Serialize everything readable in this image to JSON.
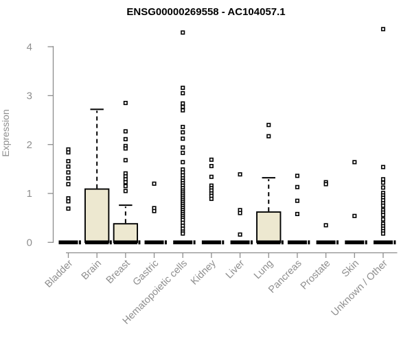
{
  "chart_data": {
    "type": "boxplot",
    "title": "ENSG00000269558 - AC104057.1",
    "ylabel": "Expression",
    "xlabel": "",
    "yticks": [
      0,
      1,
      2,
      3,
      4
    ],
    "ylim": [
      0,
      4.45
    ],
    "legend": "none",
    "grid": false,
    "colors": {
      "box_fill": "#EDE8D0",
      "box_stroke": "#000000",
      "marker": "#000000",
      "axis": "#8c8c8c",
      "tick_text": "#8e8e8e"
    },
    "categories": [
      "Bladder",
      "Brain",
      "Breast",
      "Gastric",
      "Hematopoietic cells",
      "Kidney",
      "Liver",
      "Lung",
      "Pancreas",
      "Prostate",
      "Skin",
      "Unknown / Other"
    ],
    "boxes": [
      {
        "category": "Bladder",
        "median": 0,
        "q1": 0,
        "q3": 0,
        "whisker_low": 0,
        "whisker_high": 0,
        "outliers": [
          1.9,
          1.84,
          1.66,
          1.55,
          1.43,
          1.31,
          1.19,
          0.9,
          0.84,
          0.69
        ]
      },
      {
        "category": "Brain",
        "median": 0,
        "q1": 0,
        "q3": 1.09,
        "whisker_low": 0,
        "whisker_high": 2.72,
        "outliers": []
      },
      {
        "category": "Breast",
        "median": 0,
        "q1": 0,
        "q3": 0.38,
        "whisker_low": 0,
        "whisker_high": 0.76,
        "outliers": [
          2.85,
          2.27,
          2.11,
          1.97,
          1.92,
          1.68,
          1.41,
          1.35,
          1.29,
          1.23,
          1.15,
          1.05
        ]
      },
      {
        "category": "Gastric",
        "median": 0,
        "q1": 0,
        "q3": 0,
        "whisker_low": 0,
        "whisker_high": 0,
        "outliers": [
          1.2,
          0.7,
          0.64
        ]
      },
      {
        "category": "Hematopoietic cells",
        "median": 0,
        "q1": 0,
        "q3": 0,
        "whisker_low": 0,
        "whisker_high": 0,
        "outliers": [
          4.29,
          3.16,
          3.05,
          2.84,
          2.77,
          2.7,
          2.36,
          2.25,
          2.12,
          1.94,
          1.83,
          1.64,
          1.49,
          1.43,
          1.37,
          1.31,
          1.26,
          1.21,
          1.16,
          1.11,
          1.06,
          1.02,
          0.98,
          0.94,
          0.9,
          0.86,
          0.82,
          0.78,
          0.74,
          0.7,
          0.66,
          0.62,
          0.58,
          0.54,
          0.5,
          0.46,
          0.4,
          0.34,
          0.28,
          0.22,
          0.18
        ]
      },
      {
        "category": "Kidney",
        "median": 0,
        "q1": 0,
        "q3": 0,
        "whisker_low": 0,
        "whisker_high": 0,
        "outliers": [
          1.69,
          1.56,
          1.34,
          1.16,
          1.11,
          1.06,
          1.0,
          0.95,
          0.89
        ]
      },
      {
        "category": "Liver",
        "median": 0,
        "q1": 0,
        "q3": 0,
        "whisker_low": 0,
        "whisker_high": 0,
        "outliers": [
          1.39,
          0.66,
          0.6,
          0.16
        ]
      },
      {
        "category": "Lung",
        "median": 0,
        "q1": 0,
        "q3": 0.62,
        "whisker_low": 0,
        "whisker_high": 1.32,
        "outliers": [
          2.4,
          2.17
        ]
      },
      {
        "category": "Pancreas",
        "median": 0,
        "q1": 0,
        "q3": 0,
        "whisker_low": 0,
        "whisker_high": 0,
        "outliers": [
          1.36,
          1.13,
          0.85,
          0.58
        ]
      },
      {
        "category": "Prostate",
        "median": 0,
        "q1": 0,
        "q3": 0,
        "whisker_low": 0,
        "whisker_high": 0,
        "outliers": [
          1.23,
          1.19,
          0.35
        ]
      },
      {
        "category": "Skin",
        "median": 0,
        "q1": 0,
        "q3": 0,
        "whisker_low": 0,
        "whisker_high": 0,
        "outliers": [
          1.64,
          0.54
        ]
      },
      {
        "category": "Unknown / Other",
        "median": 0,
        "q1": 0,
        "q3": 0,
        "whisker_low": 0,
        "whisker_high": 0,
        "outliers": [
          4.36,
          1.54,
          1.29,
          1.22,
          1.12,
          1.01,
          0.96,
          0.91,
          0.86,
          0.8,
          0.75,
          0.66,
          0.61,
          0.56,
          0.47,
          0.38,
          0.33,
          0.28,
          0.23,
          0.18
        ]
      }
    ]
  }
}
